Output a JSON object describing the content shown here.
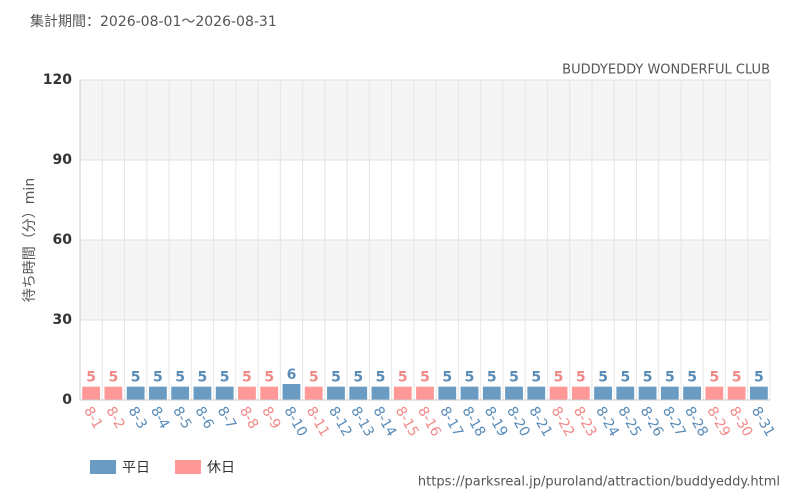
{
  "chart_data": {
    "type": "bar",
    "subtitle": "集計期間：2026-08-01～2026-08-31",
    "title": "BUDDYEDDY WONDERFUL CLUB",
    "y_label": "待ち時間（分）min",
    "source": "https://parksreal.jp/puroland/attraction/buddyeddy.html",
    "categories": [
      "8-1",
      "8-2",
      "8-3",
      "8-4",
      "8-5",
      "8-6",
      "8-7",
      "8-8",
      "8-9",
      "8-10",
      "8-11",
      "8-12",
      "8-13",
      "8-14",
      "8-15",
      "8-16",
      "8-17",
      "8-18",
      "8-19",
      "8-20",
      "8-21",
      "8-22",
      "8-23",
      "8-24",
      "8-25",
      "8-26",
      "8-27",
      "8-28",
      "8-29",
      "8-30",
      "8-31"
    ],
    "series": [
      {
        "name": "平日",
        "color": "#6a9bc3",
        "label_color": "#5a8cb8",
        "values": [
          null,
          null,
          5,
          5,
          5,
          5,
          5,
          null,
          null,
          6,
          null,
          5,
          5,
          5,
          null,
          null,
          5,
          5,
          5,
          5,
          5,
          null,
          null,
          5,
          5,
          5,
          5,
          5,
          null,
          null,
          5
        ]
      },
      {
        "name": "休日",
        "color": "#ff9896",
        "label_color": "#f08a88",
        "values": [
          5,
          5,
          null,
          null,
          null,
          null,
          null,
          5,
          5,
          null,
          5,
          null,
          null,
          null,
          5,
          5,
          null,
          null,
          null,
          null,
          null,
          5,
          5,
          null,
          null,
          null,
          null,
          null,
          5,
          5,
          null
        ]
      }
    ],
    "ylim": [
      0,
      120
    ],
    "yticks": [
      0,
      30,
      60,
      90,
      120
    ],
    "grid": true
  }
}
